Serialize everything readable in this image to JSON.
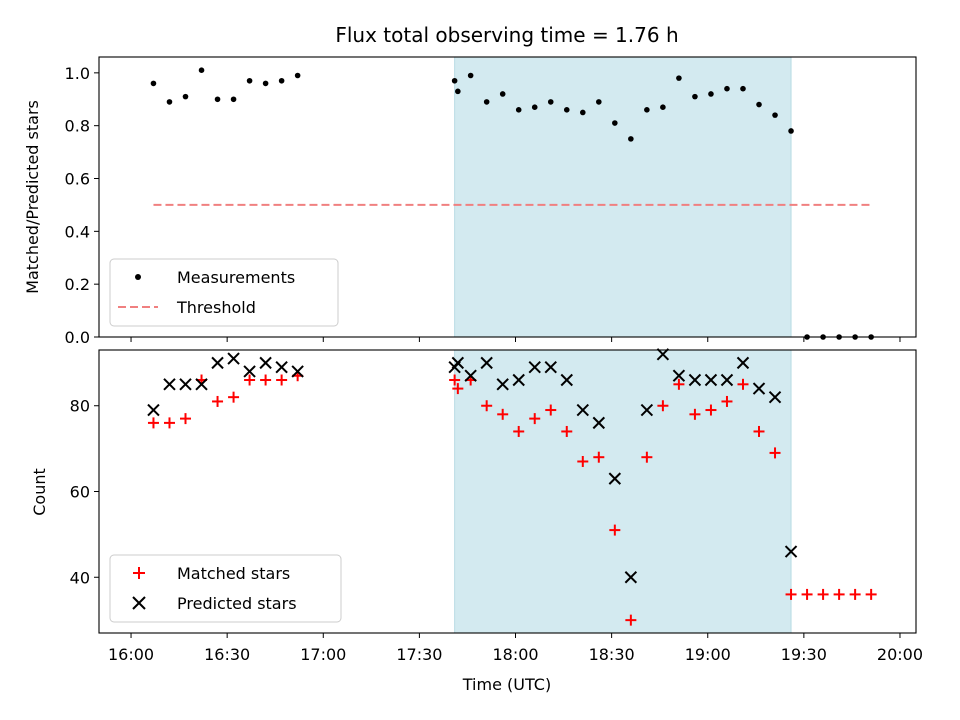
{
  "chart_data": [
    {
      "type": "scatter",
      "title": "Flux total observing time = 1.76 h",
      "ylabel": "Matched/Predicted stars",
      "ylim": [
        0.0,
        1.06
      ],
      "yticks": [
        "0.0",
        "0.2",
        "0.4",
        "0.6",
        "0.8",
        "1.0"
      ],
      "xlim_minutes": [
        -10,
        245
      ],
      "highlight_span": [
        "17:41",
        "19:26"
      ],
      "highlight_color": "#d3eaf0",
      "series": [
        {
          "name": "Measurements",
          "marker": "dot",
          "color": "#000000",
          "x": [
            "16:07",
            "16:12",
            "16:17",
            "16:22",
            "16:27",
            "16:32",
            "16:37",
            "16:42",
            "16:47",
            "16:52",
            "17:41",
            "17:42",
            "17:46",
            "17:51",
            "17:56",
            "18:01",
            "18:06",
            "18:11",
            "18:16",
            "18:21",
            "18:26",
            "18:31",
            "18:36",
            "18:41",
            "18:46",
            "18:51",
            "18:56",
            "19:01",
            "19:06",
            "19:11",
            "19:16",
            "19:21",
            "19:26",
            "19:31",
            "19:36",
            "19:41",
            "19:46",
            "19:51"
          ],
          "y": [
            0.96,
            0.89,
            0.91,
            1.01,
            0.9,
            0.9,
            0.97,
            0.96,
            0.97,
            0.99,
            0.97,
            0.93,
            0.99,
            0.89,
            0.92,
            0.86,
            0.87,
            0.89,
            0.86,
            0.85,
            0.89,
            0.81,
            0.75,
            0.86,
            0.87,
            0.98,
            0.91,
            0.92,
            0.94,
            0.94,
            0.88,
            0.84,
            0.78,
            0.0,
            0.0,
            0.0,
            0.0,
            0.0
          ]
        },
        {
          "name": "Threshold",
          "marker": "dashed-line",
          "color": "#f08080",
          "x": [
            "16:07",
            "19:51"
          ],
          "y": [
            0.5,
            0.5
          ]
        }
      ],
      "legend": "lower-left"
    },
    {
      "type": "scatter",
      "xlabel": "Time (UTC)",
      "ylabel": "Count",
      "ylim": [
        27,
        93
      ],
      "yticks": [
        "40",
        "60",
        "80"
      ],
      "xticks": [
        "16:00",
        "16:30",
        "17:00",
        "17:30",
        "18:00",
        "18:30",
        "19:00",
        "19:30",
        "20:00"
      ],
      "xlim_minutes": [
        -10,
        245
      ],
      "highlight_span": [
        "17:41",
        "19:26"
      ],
      "highlight_color": "#d3eaf0",
      "series": [
        {
          "name": "Matched stars",
          "marker": "plus",
          "color": "#ff0000",
          "x": [
            "16:07",
            "16:12",
            "16:17",
            "16:22",
            "16:27",
            "16:32",
            "16:37",
            "16:42",
            "16:47",
            "16:52",
            "17:41",
            "17:42",
            "17:46",
            "17:51",
            "17:56",
            "18:01",
            "18:06",
            "18:11",
            "18:16",
            "18:21",
            "18:26",
            "18:31",
            "18:36",
            "18:41",
            "18:46",
            "18:51",
            "18:56",
            "19:01",
            "19:06",
            "19:11",
            "19:16",
            "19:21",
            "19:26",
            "19:31",
            "19:36",
            "19:41",
            "19:46",
            "19:51"
          ],
          "y": [
            76,
            76,
            77,
            86,
            81,
            82,
            86,
            86,
            86,
            87,
            86,
            84,
            86,
            80,
            78,
            74,
            77,
            79,
            74,
            67,
            68,
            51,
            30,
            68,
            80,
            85,
            78,
            79,
            81,
            85,
            74,
            69,
            36,
            36,
            36,
            36,
            36,
            36
          ]
        },
        {
          "name": "Predicted stars",
          "marker": "x",
          "color": "#000000",
          "x": [
            "16:07",
            "16:12",
            "16:17",
            "16:22",
            "16:27",
            "16:32",
            "16:37",
            "16:42",
            "16:47",
            "16:52",
            "17:41",
            "17:42",
            "17:46",
            "17:51",
            "17:56",
            "18:01",
            "18:06",
            "18:11",
            "18:16",
            "18:21",
            "18:26",
            "18:31",
            "18:36",
            "18:41",
            "18:46",
            "18:51",
            "18:56",
            "19:01",
            "19:06",
            "19:11",
            "19:16",
            "19:21",
            "19:26"
          ],
          "y": [
            79,
            85,
            85,
            85,
            90,
            91,
            88,
            90,
            89,
            88,
            89,
            90,
            87,
            90,
            85,
            86,
            89,
            89,
            86,
            79,
            76,
            63,
            40,
            79,
            92,
            87,
            86,
            86,
            86,
            90,
            84,
            82,
            46
          ]
        }
      ],
      "legend": "lower-left"
    }
  ]
}
